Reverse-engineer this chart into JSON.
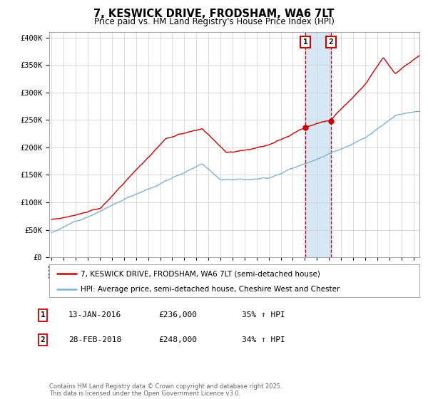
{
  "title": "7, KESWICK DRIVE, FRODSHAM, WA6 7LT",
  "subtitle": "Price paid vs. HM Land Registry's House Price Index (HPI)",
  "legend_line1": "7, KESWICK DRIVE, FRODSHAM, WA6 7LT (semi-detached house)",
  "legend_line2": "HPI: Average price, semi-detached house, Cheshire West and Chester",
  "annotation1_label": "1",
  "annotation1_date": "13-JAN-2016",
  "annotation1_price": "£236,000",
  "annotation1_hpi": "35% ↑ HPI",
  "annotation2_label": "2",
  "annotation2_date": "28-FEB-2018",
  "annotation2_price": "£248,000",
  "annotation2_hpi": "34% ↑ HPI",
  "copyright": "Contains HM Land Registry data © Crown copyright and database right 2025.\nThis data is licensed under the Open Government Licence v3.0.",
  "sale1_x": 2016.04,
  "sale1_y": 236000,
  "sale2_x": 2018.17,
  "sale2_y": 248000,
  "red_color": "#cc0000",
  "blue_color": "#7fb3d3",
  "shaded_color": "#d6e8f5",
  "background_color": "#ffffff",
  "grid_color": "#cccccc",
  "ylim": [
    0,
    410000
  ],
  "xlim": [
    1994.8,
    2025.5
  ]
}
